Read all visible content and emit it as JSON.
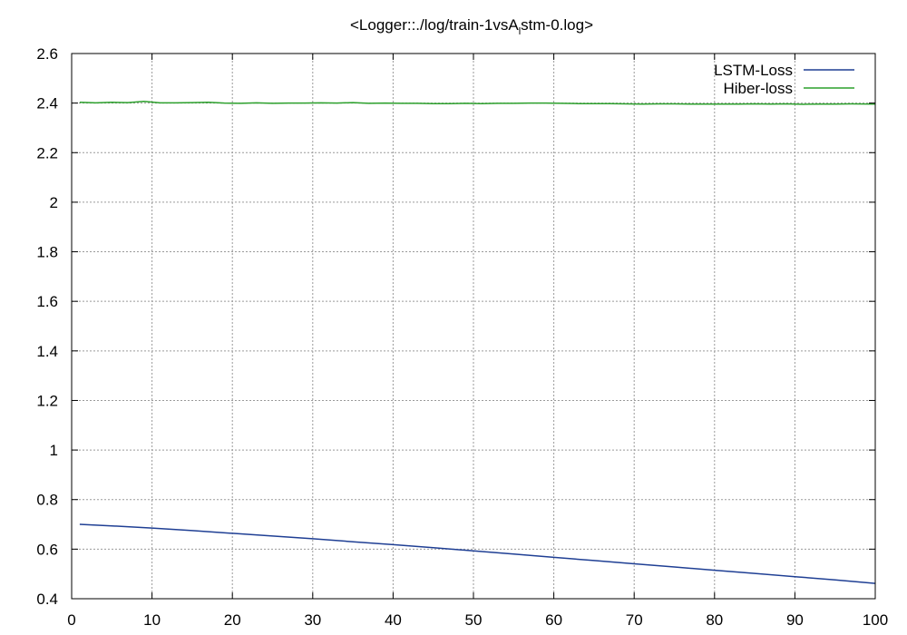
{
  "chart_data": {
    "type": "line",
    "title_prefix": "<Logger::./log/train-1vsA",
    "title_sub": "l",
    "title_suffix": "stm-0.log>",
    "xlabel": "",
    "ylabel": "",
    "xlim": [
      0,
      100
    ],
    "ylim": [
      0.4,
      2.6
    ],
    "x_ticks": [
      "0",
      "10",
      "20",
      "30",
      "40",
      "50",
      "60",
      "70",
      "80",
      "90",
      "100"
    ],
    "y_ticks": [
      "0.4",
      "0.6",
      "0.8",
      "1",
      "1.2",
      "1.4",
      "1.6",
      "1.8",
      "2",
      "2.2",
      "2.4",
      "2.6"
    ],
    "x_tick_values": [
      0,
      10,
      20,
      30,
      40,
      50,
      60,
      70,
      80,
      90,
      100
    ],
    "y_tick_values": [
      0.4,
      0.6,
      0.8,
      1.0,
      1.2,
      1.4,
      1.6,
      1.8,
      2.0,
      2.2,
      2.4,
      2.6
    ],
    "grid": true,
    "legend_position": "top-right",
    "series": [
      {
        "name": "LSTM-Loss",
        "color": "#1f3f94",
        "x": [
          1,
          5,
          10,
          15,
          20,
          25,
          30,
          35,
          40,
          45,
          50,
          55,
          60,
          65,
          70,
          75,
          80,
          85,
          90,
          95,
          100
        ],
        "y": [
          0.7,
          0.694,
          0.685,
          0.675,
          0.664,
          0.653,
          0.642,
          0.63,
          0.618,
          0.606,
          0.593,
          0.58,
          0.567,
          0.554,
          0.541,
          0.528,
          0.515,
          0.502,
          0.489,
          0.476,
          0.462
        ]
      },
      {
        "name": "Hiber-loss",
        "color": "#2ca02c",
        "x": [
          1,
          3,
          5,
          7,
          9,
          11,
          13,
          15,
          17,
          19,
          21,
          23,
          25,
          27,
          29,
          31,
          33,
          35,
          37,
          39,
          41,
          43,
          45,
          47,
          49,
          51,
          53,
          55,
          57,
          59,
          61,
          63,
          65,
          67,
          69,
          71,
          73,
          75,
          77,
          79,
          81,
          83,
          85,
          87,
          89,
          91,
          93,
          95,
          97,
          100
        ],
        "y": [
          2.403,
          2.401,
          2.403,
          2.402,
          2.407,
          2.401,
          2.401,
          2.402,
          2.403,
          2.4,
          2.399,
          2.401,
          2.399,
          2.4,
          2.4,
          2.401,
          2.4,
          2.402,
          2.399,
          2.4,
          2.399,
          2.399,
          2.398,
          2.398,
          2.399,
          2.398,
          2.399,
          2.399,
          2.4,
          2.4,
          2.399,
          2.398,
          2.398,
          2.398,
          2.397,
          2.396,
          2.397,
          2.397,
          2.396,
          2.396,
          2.396,
          2.396,
          2.397,
          2.396,
          2.397,
          2.395,
          2.396,
          2.396,
          2.397,
          2.396
        ]
      }
    ]
  }
}
